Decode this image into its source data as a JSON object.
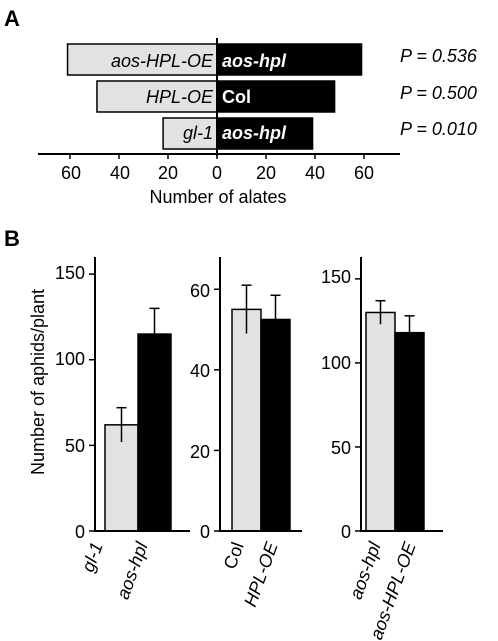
{
  "panel_a": {
    "label": "A",
    "xlabel": "Number of alates",
    "ticks": [
      "60",
      "40",
      "20",
      "0",
      "20",
      "40",
      "60"
    ],
    "pairs": [
      {
        "left_label": "aos-HPL-OE",
        "right_label": "aos-hpl",
        "p_label": "P = 0.536"
      },
      {
        "left_label": "HPL-OE",
        "right_label": "Col",
        "p_label": "P = 0.500"
      },
      {
        "left_label": "gl-1",
        "right_label": "aos-hpl",
        "p_label": "P = 0.010"
      }
    ]
  },
  "panel_b": {
    "label": "B",
    "ylabel": "Number of aphids/plant",
    "plots": [
      {
        "ticks": [
          "0",
          "50",
          "100",
          "150"
        ],
        "categories": [
          "gl-1",
          "aos-hpl"
        ]
      },
      {
        "ticks": [
          "0",
          "20",
          "40",
          "60"
        ],
        "categories": [
          "Col",
          "HPL-OE"
        ]
      },
      {
        "ticks": [
          "0",
          "50",
          "100",
          "150"
        ],
        "categories": [
          "aos-hpl",
          "aos-HPL-OE"
        ]
      }
    ]
  },
  "colors": {
    "light_bar": "#e2e2e2",
    "dark_bar": "#000000",
    "line": "#000000"
  },
  "chart_data": [
    {
      "type": "bar",
      "orientation": "horizontal-back-to-back",
      "xlabel": "Number of alates",
      "xlim": [
        -60,
        60
      ],
      "rows": [
        {
          "left": "aos-HPL-OE",
          "left_value": 61,
          "right": "aos-hpl",
          "right_value": 59,
          "p": "P = 0.536"
        },
        {
          "left": "HPL-OE",
          "left_value": 49,
          "right": "Col",
          "right_value": 48,
          "p": "P = 0.500"
        },
        {
          "left": "gl-1",
          "left_value": 22,
          "right": "aos-hpl",
          "right_value": 39,
          "p": "P = 0.010"
        }
      ]
    },
    {
      "type": "bar",
      "ylabel": "Number of aphids/plant",
      "categories": [
        "gl-1",
        "aos-hpl"
      ],
      "values": [
        62,
        115
      ],
      "errors": [
        10,
        15
      ],
      "colors": [
        "#e2e2e2",
        "#000000"
      ],
      "ylim": [
        0,
        160
      ]
    },
    {
      "type": "bar",
      "categories": [
        "Col",
        "HPL-OE"
      ],
      "values": [
        55,
        52.5
      ],
      "errors": [
        6,
        6
      ],
      "colors": [
        "#e2e2e2",
        "#000000"
      ],
      "ylim": [
        0,
        68
      ]
    },
    {
      "type": "bar",
      "categories": [
        "aos-hpl",
        "aos-HPL-OE"
      ],
      "values": [
        130,
        118
      ],
      "errors": [
        7,
        10
      ],
      "colors": [
        "#e2e2e2",
        "#000000"
      ],
      "ylim": [
        0,
        163
      ]
    }
  ]
}
